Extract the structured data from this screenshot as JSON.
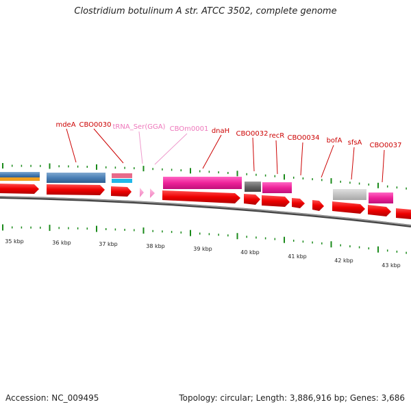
{
  "title": "Clostridium botulinum A str. ATCC 3502, complete genome",
  "accession": "Accession: NC_009495",
  "summary": "Topology: circular; Length: 3,886,916 bp; Genes: 3,686",
  "kbp_labels": [
    "35 kbp",
    "36 kbp",
    "37 kbp",
    "38 kbp",
    "39 kbp",
    "40 kbp",
    "41 kbp",
    "42 kbp",
    "43 kbp"
  ],
  "feature_labels": [
    {
      "name": "mdeA",
      "kind": "gene"
    },
    {
      "name": "CBO0030",
      "kind": "gene"
    },
    {
      "name": "tRNA_Ser(GGA)",
      "kind": "rna"
    },
    {
      "name": "CBOm0001",
      "kind": "rna"
    },
    {
      "name": "dnaH",
      "kind": "gene"
    },
    {
      "name": "CBO0032",
      "kind": "gene"
    },
    {
      "name": "recR",
      "kind": "gene"
    },
    {
      "name": "CBO0034",
      "kind": "gene"
    },
    {
      "name": "bofA",
      "kind": "gene"
    },
    {
      "name": "sfsA",
      "kind": "gene"
    },
    {
      "name": "CBO0037",
      "kind": "gene"
    }
  ],
  "colors": {
    "gene_label": "#cc0000",
    "rna_label": "#ee77bb",
    "leader_gene": "#cc0000",
    "leader_rna": "#ee99cc",
    "tick": "#1a8a1a",
    "cds": "#ee0000",
    "backbone": "#777777"
  }
}
